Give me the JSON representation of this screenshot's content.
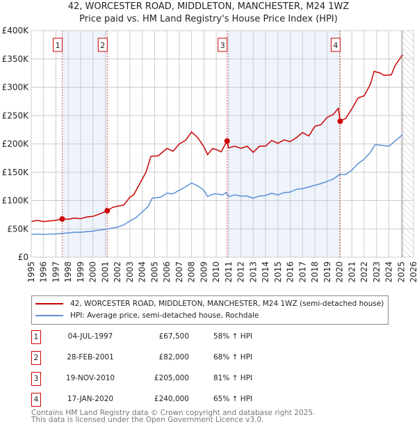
{
  "title_line1": "42, WORCESTER ROAD, MIDDLETON, MANCHESTER, M24 1WZ",
  "title_line2": "Price paid vs. HM Land Registry's House Price Index (HPI)",
  "chart_data": {
    "type": "line",
    "xlim": [
      1995,
      2026
    ],
    "ylim": [
      0,
      400000
    ],
    "x_ticks": [
      1995,
      1996,
      1997,
      1998,
      1999,
      2000,
      2001,
      2002,
      2003,
      2004,
      2005,
      2006,
      2007,
      2008,
      2009,
      2010,
      2011,
      2012,
      2013,
      2014,
      2015,
      2016,
      2017,
      2018,
      2019,
      2020,
      2021,
      2022,
      2023,
      2024,
      2025,
      2026
    ],
    "y_ticks": [
      0,
      50000,
      100000,
      150000,
      200000,
      250000,
      300000,
      350000,
      400000
    ],
    "y_tick_labels": [
      "£0",
      "£50K",
      "£100K",
      "£150K",
      "£200K",
      "£250K",
      "£300K",
      "£350K",
      "£400K"
    ],
    "grid": true,
    "forecast_hatch_from": 2025.1,
    "colors": {
      "property": "#cc0000",
      "hpi": "#5b8fd6",
      "shade": "#eef3fc"
    },
    "series": [
      {
        "name": "42, WORCESTER ROAD, MIDDLETON, MANCHESTER, M24 1WZ (semi-detached house)",
        "points": [
          [
            1995,
            63000
          ],
          [
            1995.5,
            65000
          ],
          [
            1996,
            63000
          ],
          [
            1996.5,
            64000
          ],
          [
            1997,
            65000
          ],
          [
            1997.5,
            67500
          ],
          [
            1998,
            67000
          ],
          [
            1998.5,
            69000
          ],
          [
            1999,
            68000
          ],
          [
            1999.5,
            71000
          ],
          [
            2000,
            72000
          ],
          [
            2000.5,
            76000
          ],
          [
            2001.16,
            82000
          ],
          [
            2001.6,
            88000
          ],
          [
            2002,
            90000
          ],
          [
            2002.5,
            92000
          ],
          [
            2003,
            106000
          ],
          [
            2003.3,
            110000
          ],
          [
            2003.6,
            122000
          ],
          [
            2004,
            138000
          ],
          [
            2004.3,
            150000
          ],
          [
            2004.7,
            178000
          ],
          [
            2005.3,
            179000
          ],
          [
            2006,
            192000
          ],
          [
            2006.5,
            187000
          ],
          [
            2007,
            200000
          ],
          [
            2007.5,
            206000
          ],
          [
            2008,
            221000
          ],
          [
            2008.5,
            211000
          ],
          [
            2009,
            195000
          ],
          [
            2009.3,
            181000
          ],
          [
            2009.7,
            192000
          ],
          [
            2010,
            190000
          ],
          [
            2010.4,
            186000
          ],
          [
            2010.88,
            205000
          ],
          [
            2011,
            193000
          ],
          [
            2011.5,
            196000
          ],
          [
            2012,
            192000
          ],
          [
            2012.5,
            196000
          ],
          [
            2013,
            185000
          ],
          [
            2013.5,
            196000
          ],
          [
            2014,
            196000
          ],
          [
            2014.5,
            206000
          ],
          [
            2015,
            201000
          ],
          [
            2015.5,
            207000
          ],
          [
            2016,
            204000
          ],
          [
            2016.5,
            211000
          ],
          [
            2017,
            220000
          ],
          [
            2017.5,
            214000
          ],
          [
            2018,
            231000
          ],
          [
            2018.5,
            234000
          ],
          [
            2019,
            247000
          ],
          [
            2019.5,
            252000
          ],
          [
            2019.9,
            263000
          ],
          [
            2020.05,
            240000
          ],
          [
            2020.5,
            245000
          ],
          [
            2021,
            262000
          ],
          [
            2021.5,
            281000
          ],
          [
            2022,
            285000
          ],
          [
            2022.5,
            305000
          ],
          [
            2022.8,
            328000
          ],
          [
            2023.3,
            325000
          ],
          [
            2023.6,
            321000
          ],
          [
            2024.2,
            322000
          ],
          [
            2024.5,
            338000
          ],
          [
            2025.1,
            357000
          ]
        ]
      },
      {
        "name": "HPI: Average price, semi-detached house, Rochdale",
        "points": [
          [
            1995,
            40000
          ],
          [
            1995.5,
            41000
          ],
          [
            1996,
            40000
          ],
          [
            1996.5,
            41000
          ],
          [
            1997,
            41000
          ],
          [
            1997.5,
            42000
          ],
          [
            1998,
            43000
          ],
          [
            1998.5,
            44000
          ],
          [
            1999,
            44000
          ],
          [
            1999.5,
            45000
          ],
          [
            2000,
            46000
          ],
          [
            2000.5,
            48000
          ],
          [
            2001,
            49000
          ],
          [
            2001.5,
            51000
          ],
          [
            2002,
            53000
          ],
          [
            2002.5,
            57000
          ],
          [
            2003,
            64000
          ],
          [
            2003.5,
            70000
          ],
          [
            2004,
            80000
          ],
          [
            2004.5,
            90000
          ],
          [
            2004.8,
            104000
          ],
          [
            2005.5,
            106000
          ],
          [
            2006,
            113000
          ],
          [
            2006.5,
            112000
          ],
          [
            2007,
            118000
          ],
          [
            2007.5,
            124000
          ],
          [
            2008,
            131000
          ],
          [
            2008.5,
            126000
          ],
          [
            2009,
            118000
          ],
          [
            2009.3,
            107000
          ],
          [
            2009.7,
            111000
          ],
          [
            2010,
            112000
          ],
          [
            2010.5,
            110000
          ],
          [
            2010.8,
            114000
          ],
          [
            2011,
            107000
          ],
          [
            2011.5,
            110000
          ],
          [
            2012,
            108000
          ],
          [
            2012.5,
            108000
          ],
          [
            2013,
            104000
          ],
          [
            2013.5,
            108000
          ],
          [
            2014,
            109000
          ],
          [
            2014.5,
            113000
          ],
          [
            2015,
            110000
          ],
          [
            2015.5,
            114000
          ],
          [
            2016,
            115000
          ],
          [
            2016.5,
            120000
          ],
          [
            2017,
            121000
          ],
          [
            2017.5,
            124000
          ],
          [
            2018,
            127000
          ],
          [
            2018.5,
            130000
          ],
          [
            2019,
            134000
          ],
          [
            2019.5,
            138000
          ],
          [
            2020,
            146000
          ],
          [
            2020.5,
            146000
          ],
          [
            2021,
            154000
          ],
          [
            2021.5,
            165000
          ],
          [
            2022,
            173000
          ],
          [
            2022.5,
            185000
          ],
          [
            2022.9,
            199000
          ],
          [
            2023.5,
            197000
          ],
          [
            2024,
            196000
          ],
          [
            2024.5,
            205000
          ],
          [
            2025.1,
            216000
          ]
        ]
      }
    ],
    "sales": [
      {
        "n": "1",
        "x": 1997.51,
        "price": 67500
      },
      {
        "n": "2",
        "x": 2001.16,
        "price": 82000
      },
      {
        "n": "3",
        "x": 2010.88,
        "price": 205000
      },
      {
        "n": "4",
        "x": 2020.05,
        "price": 240000
      }
    ]
  },
  "legend": {
    "property": "42, WORCESTER ROAD, MIDDLETON, MANCHESTER, M24 1WZ (semi-detached house)",
    "hpi": "HPI: Average price, semi-detached house, Rochdale"
  },
  "sales_table": [
    {
      "n": "1",
      "date": "04-JUL-1997",
      "price": "£67,500",
      "pct": "58% ↑ HPI"
    },
    {
      "n": "2",
      "date": "28-FEB-2001",
      "price": "£82,000",
      "pct": "68% ↑ HPI"
    },
    {
      "n": "3",
      "date": "19-NOV-2010",
      "price": "£205,000",
      "pct": "81% ↑ HPI"
    },
    {
      "n": "4",
      "date": "17-JAN-2020",
      "price": "£240,000",
      "pct": "65% ↑ HPI"
    }
  ],
  "footer": {
    "line1": "Contains HM Land Registry data © Crown copyright and database right 2025.",
    "line2": "This data is licensed under the Open Government Licence v3.0."
  }
}
